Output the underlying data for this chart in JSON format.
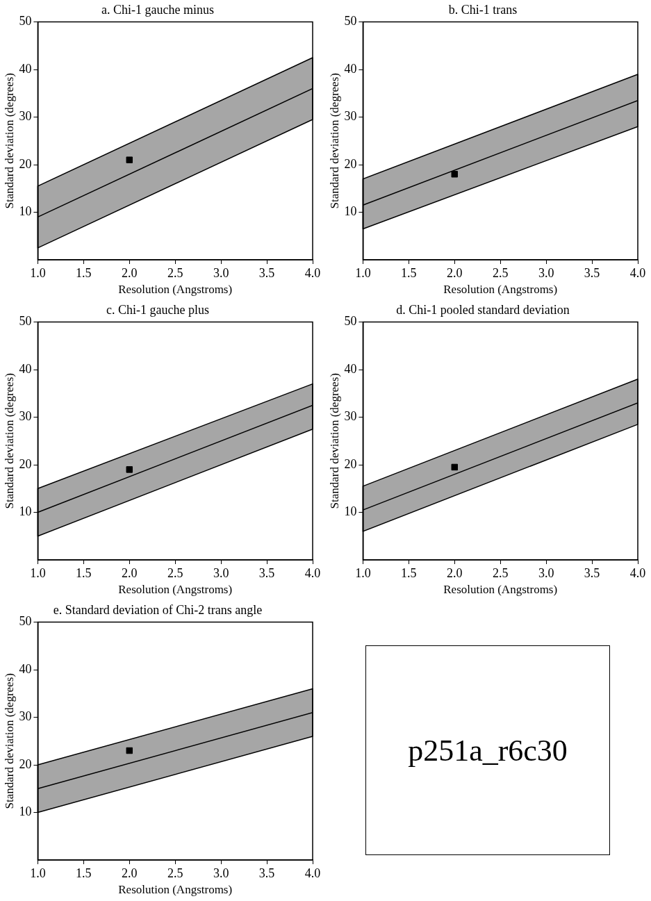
{
  "chart_data": [
    {
      "type": "line",
      "title": "a. Chi-1 gauche minus",
      "xlabel": "Resolution (Angstroms)",
      "ylabel": "Standard deviation (degrees)",
      "xlim": [
        1,
        4
      ],
      "ylim": [
        0,
        50
      ],
      "xticks": [
        {
          "value": 1,
          "label": "1.0"
        },
        {
          "value": 1.5,
          "label": "1.5"
        },
        {
          "value": 2,
          "label": "2.0"
        },
        {
          "value": 2.5,
          "label": "2.5"
        },
        {
          "value": 3,
          "label": "3.0"
        },
        {
          "value": 3.5,
          "label": "3.5"
        },
        {
          "value": 4,
          "label": "4.0"
        }
      ],
      "yticks": [
        10,
        20,
        30,
        40,
        50
      ],
      "grid": false,
      "legend": false,
      "series": [
        {
          "type": "line",
          "color": "#000000",
          "x": [
            1,
            4
          ],
          "values": [
            9,
            36
          ],
          "lower": [
            2.5,
            29.5
          ],
          "upper": [
            15.5,
            42.5
          ],
          "marker": "none"
        },
        {
          "type": "scatter",
          "color": "#000000",
          "x": [
            2
          ],
          "values": [
            21
          ],
          "marker": "square"
        }
      ]
    },
    {
      "type": "line",
      "title": "b. Chi-1 trans",
      "xlabel": "Resolution (Angstroms)",
      "ylabel": "Standard deviation (degrees)",
      "xlim": [
        1,
        4
      ],
      "ylim": [
        0,
        50
      ],
      "xticks": [
        {
          "value": 1,
          "label": "1.0"
        },
        {
          "value": 1.5,
          "label": "1.5"
        },
        {
          "value": 2,
          "label": "2.0"
        },
        {
          "value": 2.5,
          "label": "2.5"
        },
        {
          "value": 3,
          "label": "3.0"
        },
        {
          "value": 3.5,
          "label": "3.5"
        },
        {
          "value": 4,
          "label": "4.0"
        }
      ],
      "yticks": [
        10,
        20,
        30,
        40,
        50
      ],
      "grid": false,
      "legend": false,
      "series": [
        {
          "type": "line",
          "color": "#000000",
          "x": [
            1,
            4
          ],
          "values": [
            11.5,
            33.5
          ],
          "lower": [
            6.5,
            28
          ],
          "upper": [
            17,
            39
          ],
          "marker": "none"
        },
        {
          "type": "scatter",
          "color": "#000000",
          "x": [
            2
          ],
          "values": [
            18
          ],
          "marker": "square"
        }
      ]
    },
    {
      "type": "line",
      "title": "c. Chi-1 gauche plus",
      "xlabel": "Resolution (Angstroms)",
      "ylabel": "Standard deviation (degrees)",
      "xlim": [
        1,
        4
      ],
      "ylim": [
        0,
        50
      ],
      "xticks": [
        {
          "value": 1,
          "label": "1.0"
        },
        {
          "value": 1.5,
          "label": "1.5"
        },
        {
          "value": 2,
          "label": "2.0"
        },
        {
          "value": 2.5,
          "label": "2.5"
        },
        {
          "value": 3,
          "label": "3.0"
        },
        {
          "value": 3.5,
          "label": "3.5"
        },
        {
          "value": 4,
          "label": "4.0"
        }
      ],
      "yticks": [
        10,
        20,
        30,
        40,
        50
      ],
      "grid": false,
      "legend": false,
      "series": [
        {
          "type": "line",
          "color": "#000000",
          "x": [
            1,
            4
          ],
          "values": [
            10,
            32.5
          ],
          "lower": [
            5,
            27.5
          ],
          "upper": [
            15,
            37
          ],
          "marker": "none"
        },
        {
          "type": "scatter",
          "color": "#000000",
          "x": [
            2
          ],
          "values": [
            19
          ],
          "marker": "square"
        }
      ]
    },
    {
      "type": "line",
      "title": "d. Chi-1 pooled standard deviation",
      "xlabel": "Resolution (Angstroms)",
      "ylabel": "Standard deviation (degrees)",
      "xlim": [
        1,
        4
      ],
      "ylim": [
        0,
        50
      ],
      "xticks": [
        {
          "value": 1,
          "label": "1.0"
        },
        {
          "value": 1.5,
          "label": "1.5"
        },
        {
          "value": 2,
          "label": "2.0"
        },
        {
          "value": 2.5,
          "label": "2.5"
        },
        {
          "value": 3,
          "label": "3.0"
        },
        {
          "value": 3.5,
          "label": "3.5"
        },
        {
          "value": 4,
          "label": "4.0"
        }
      ],
      "yticks": [
        10,
        20,
        30,
        40,
        50
      ],
      "grid": false,
      "legend": false,
      "series": [
        {
          "type": "line",
          "color": "#000000",
          "x": [
            1,
            4
          ],
          "values": [
            10.5,
            33
          ],
          "lower": [
            6,
            28.5
          ],
          "upper": [
            15.5,
            38
          ],
          "marker": "none"
        },
        {
          "type": "scatter",
          "color": "#000000",
          "x": [
            2
          ],
          "values": [
            19.5
          ],
          "marker": "square"
        }
      ]
    },
    {
      "type": "line",
      "title": "e. Standard deviation of Chi-2 trans angle",
      "xlabel": "Resolution (Angstroms)",
      "ylabel": "Standard deviation (degrees)",
      "xlim": [
        1,
        4
      ],
      "ylim": [
        0,
        50
      ],
      "xticks": [
        {
          "value": 1,
          "label": "1.0"
        },
        {
          "value": 1.5,
          "label": "1.5"
        },
        {
          "value": 2,
          "label": "2.0"
        },
        {
          "value": 2.5,
          "label": "2.5"
        },
        {
          "value": 3,
          "label": "3.0"
        },
        {
          "value": 3.5,
          "label": "3.5"
        },
        {
          "value": 4,
          "label": "4.0"
        }
      ],
      "yticks": [
        10,
        20,
        30,
        40,
        50
      ],
      "grid": false,
      "legend": false,
      "series": [
        {
          "type": "line",
          "color": "#000000",
          "x": [
            1,
            4
          ],
          "values": [
            15,
            31
          ],
          "lower": [
            10,
            26
          ],
          "upper": [
            20,
            36
          ],
          "marker": "none"
        },
        {
          "type": "scatter",
          "color": "#000000",
          "x": [
            2
          ],
          "values": [
            23
          ],
          "marker": "square"
        }
      ]
    },
    {
      "type": "other",
      "title": "p251a_r6c30"
    }
  ]
}
